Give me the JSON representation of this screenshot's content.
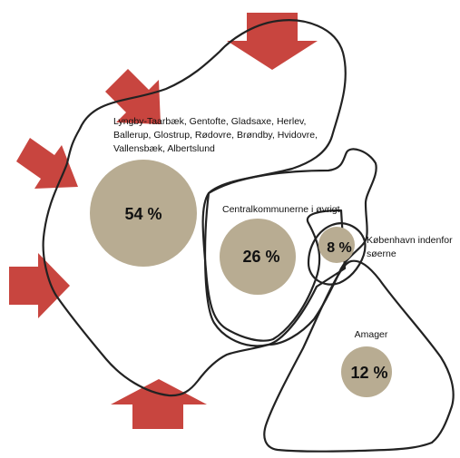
{
  "colors": {
    "arrow": "#c8453f",
    "bubble": "#b8ac92",
    "outline": "#222222",
    "text": "#111111"
  },
  "regions": {
    "outer": {
      "label_lines": [
        "Lyngby-Taarbæk, Gentofte, Gladsaxe, Herlev,",
        "Ballerup, Glostrup, Rødovre, Brøndby, Hvidovre,",
        "Vallensbæk, Albertslund"
      ],
      "share": "54 %"
    },
    "central": {
      "label": "Centralkommunerne i øvrigt",
      "share": "26 %"
    },
    "inner_city": {
      "label_lines": [
        "København indenfor",
        "søerne"
      ],
      "share": "8 %"
    },
    "amager": {
      "label": "Amager",
      "share": "12 %"
    }
  }
}
